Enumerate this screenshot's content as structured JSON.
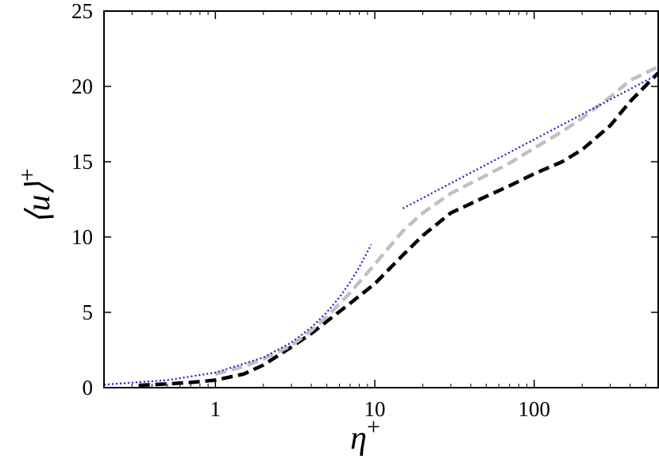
{
  "chart_data": {
    "type": "line",
    "xscale": "log",
    "xlim": [
      0.2,
      600
    ],
    "ylim": [
      0,
      25
    ],
    "xticks": [
      1,
      10,
      100
    ],
    "xtick_labels": [
      "1",
      "10",
      "100"
    ],
    "yticks": [
      0,
      5,
      10,
      15,
      20,
      25
    ],
    "ytick_labels": [
      "0",
      "5",
      "10",
      "15",
      "20",
      "25"
    ],
    "xlabel": {
      "base": "η",
      "sup": "+"
    },
    "ylabel": {
      "base": "⟨u⟩",
      "sup": "+"
    },
    "grid": false,
    "legend": "none",
    "series": [
      {
        "style": "black-dashed",
        "color": "#000000",
        "x": [
          0.33,
          0.5,
          0.7,
          1.0,
          1.5,
          2.0,
          3.0,
          4.0,
          5.0,
          7.0,
          10,
          15,
          20,
          30,
          50,
          70,
          100,
          150,
          200,
          300,
          400,
          600
        ],
        "y": [
          0.15,
          0.25,
          0.35,
          0.5,
          0.9,
          1.5,
          2.7,
          3.6,
          4.4,
          5.6,
          6.9,
          8.8,
          10.1,
          11.6,
          12.7,
          13.4,
          14.2,
          15.0,
          15.8,
          17.4,
          19.0,
          20.9
        ]
      },
      {
        "style": "gray-dashed",
        "color": "#c0c0c0",
        "x": [
          1.0,
          1.5,
          2.0,
          3.0,
          4.0,
          5.0,
          7.0,
          10,
          15,
          20,
          30,
          50,
          70,
          100,
          150,
          200,
          300,
          400,
          600
        ],
        "y": [
          0.9,
          1.4,
          1.9,
          2.8,
          3.8,
          4.7,
          6.3,
          8.2,
          10.4,
          11.6,
          12.9,
          14.1,
          14.9,
          15.9,
          17.0,
          17.9,
          19.3,
          20.4,
          21.3
        ]
      },
      {
        "style": "blue-dotted",
        "color": "#1a1ad0",
        "x": [
          0.2,
          0.5,
          1.0,
          2.0,
          3.0,
          4.0,
          5.0,
          6.0,
          7.0,
          8.0,
          9.5
        ],
        "y": [
          0.2,
          0.5,
          1.0,
          2.0,
          3.0,
          4.0,
          5.0,
          6.0,
          7.0,
          8.0,
          9.5
        ]
      },
      {
        "style": "blue-dotted",
        "color": "#1a1ad0",
        "x": [
          15,
          600
        ],
        "y": [
          11.9,
          20.8
        ]
      }
    ]
  }
}
